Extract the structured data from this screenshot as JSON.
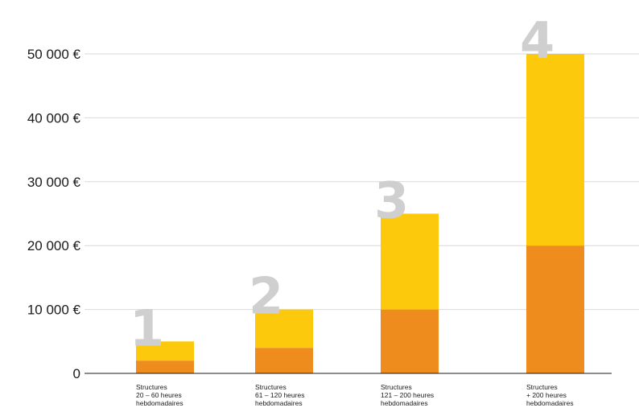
{
  "chart_data": {
    "type": "bar",
    "stacked": true,
    "categories": [
      [
        "Structures",
        "20 – 60 heures",
        "hebdomadaires"
      ],
      [
        "Structures",
        "61 – 120 heures",
        "hebdomadaires"
      ],
      [
        "Structures",
        "121 – 200 heures",
        "hebdomadaires"
      ],
      [
        "Structures",
        "+ 200 heures",
        "hebdomadaires"
      ]
    ],
    "category_numbers": [
      "1",
      "2",
      "3",
      "4"
    ],
    "series": [
      {
        "color": "#ef8c1e",
        "values": [
          2000,
          4000,
          10000,
          20000
        ]
      },
      {
        "color": "#fdc90c",
        "values": [
          3000,
          6000,
          15000,
          30000
        ]
      }
    ],
    "yticks": [
      "0",
      "10 000 €",
      "20 000 €",
      "30 000 €",
      "40 000 €",
      "50 000 €"
    ],
    "ylim": [
      0,
      50000
    ],
    "grid": true,
    "legend": "none"
  }
}
